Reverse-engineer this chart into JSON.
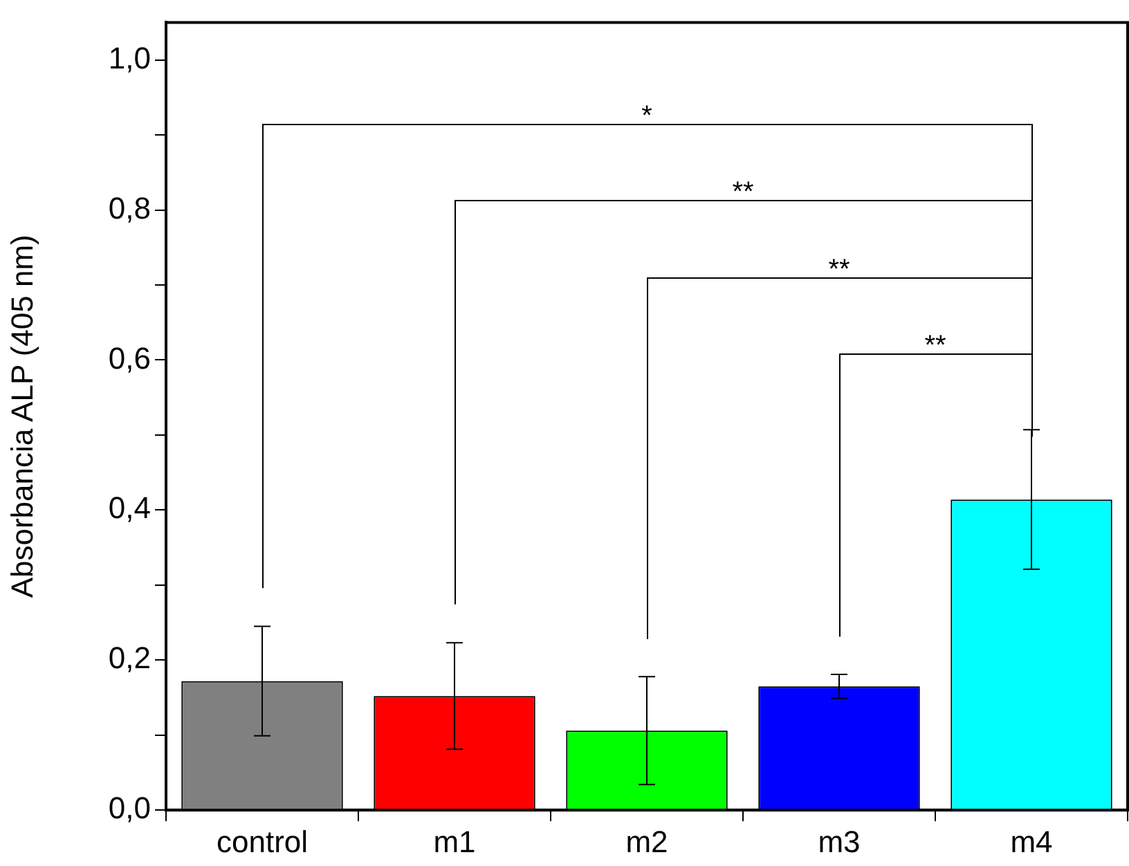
{
  "chart_data": {
    "type": "bar",
    "ylabel": "Absorbancia ALP (405 nm)",
    "categories": [
      "control",
      "m1",
      "m2",
      "m3",
      "m4"
    ],
    "values": [
      0.172,
      0.152,
      0.106,
      0.165,
      0.414
    ],
    "colors": [
      "#808080",
      "#ff0000",
      "#00ff00",
      "#0000ff",
      "#00ffff"
    ],
    "errors": [
      0.073,
      0.071,
      0.072,
      0.016,
      0.093
    ],
    "ylim": [
      0,
      1.05
    ],
    "yticks": [
      {
        "value": 0,
        "label": "0,0"
      },
      {
        "value": 0.1,
        "label": null
      },
      {
        "value": 0.2,
        "label": "0,2"
      },
      {
        "value": 0.3,
        "label": null
      },
      {
        "value": 0.4,
        "label": "0,4"
      },
      {
        "value": 0.5,
        "label": null
      },
      {
        "value": 0.6,
        "label": "0,6"
      },
      {
        "value": 0.7,
        "label": null
      },
      {
        "value": 0.8,
        "label": "0,8"
      },
      {
        "value": 0.9,
        "label": null
      },
      {
        "value": 1.0,
        "label": "1,0"
      }
    ],
    "grid": false,
    "legend": false,
    "annotations": [
      "*",
      "**",
      "**",
      "**"
    ]
  }
}
